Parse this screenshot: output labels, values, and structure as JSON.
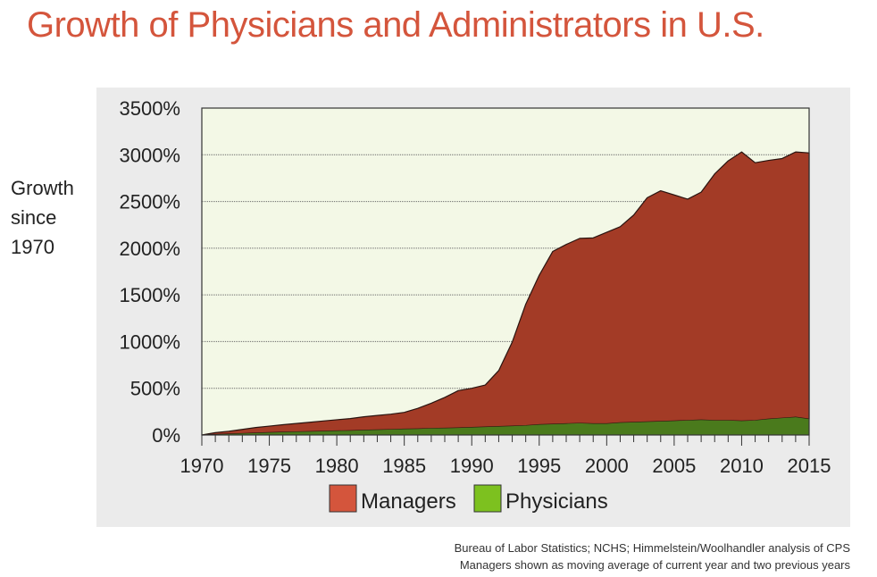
{
  "title": "Growth of Physicians and Administrators in U.S.",
  "ylabel_lines": [
    "Growth",
    "since",
    "1970"
  ],
  "source_lines": [
    "Bureau of Labor Statistics; NCHS; Himmelstein/Woolhandler analysis of CPS",
    "Managers shown as moving average of current year and two previous years"
  ],
  "colors": {
    "plot_bg": "#f3f8e6",
    "managers": "#a33b26",
    "managers_legend": "#d4553c",
    "physicians": "#4a7a1c",
    "physicians_legend": "#7dc11f",
    "grid": "#666666"
  },
  "chart_data": {
    "type": "area",
    "stacked": true,
    "title": "Growth of Physicians and Administrators in U.S.",
    "ylabel": "Growth since 1970",
    "xlabel": "",
    "xlim": [
      1970,
      2015
    ],
    "ylim": [
      0,
      3500
    ],
    "x_ticks": [
      1970,
      1975,
      1980,
      1985,
      1990,
      1995,
      2000,
      2005,
      2010,
      2015
    ],
    "y_ticks": [
      0,
      500,
      1000,
      1500,
      2000,
      2500,
      3000,
      3500
    ],
    "y_tick_labels": [
      "0%",
      "500%",
      "1000%",
      "1500%",
      "2000%",
      "2500%",
      "3000%",
      "3500%"
    ],
    "grid": true,
    "legend_position": "bottom",
    "x": [
      1970,
      1971,
      1972,
      1973,
      1974,
      1975,
      1976,
      1977,
      1978,
      1979,
      1980,
      1981,
      1982,
      1983,
      1984,
      1985,
      1986,
      1987,
      1988,
      1989,
      1990,
      1991,
      1992,
      1993,
      1994,
      1995,
      1996,
      1997,
      1998,
      1999,
      2000,
      2001,
      2002,
      2003,
      2004,
      2005,
      2006,
      2007,
      2008,
      2009,
      2010,
      2011,
      2012,
      2013,
      2014,
      2015
    ],
    "series": [
      {
        "name": "Managers",
        "values": [
          0,
          20,
          30,
          45,
          60,
          70,
          80,
          90,
          100,
          110,
          120,
          130,
          145,
          155,
          165,
          180,
          220,
          270,
          330,
          400,
          420,
          450,
          600,
          900,
          1300,
          1600,
          1850,
          1920,
          1980,
          1990,
          2050,
          2100,
          2220,
          2400,
          2470,
          2420,
          2370,
          2440,
          2640,
          2780,
          2880,
          2760,
          2770,
          2780,
          2840,
          2850
        ]
      },
      {
        "name": "Physicians",
        "values": [
          0,
          5,
          10,
          15,
          20,
          25,
          30,
          33,
          36,
          40,
          43,
          46,
          50,
          54,
          58,
          62,
          65,
          70,
          72,
          75,
          80,
          85,
          90,
          95,
          100,
          110,
          115,
          120,
          125,
          120,
          120,
          130,
          135,
          140,
          145,
          150,
          155,
          160,
          155,
          155,
          150,
          155,
          170,
          180,
          190,
          170
        ]
      }
    ]
  }
}
